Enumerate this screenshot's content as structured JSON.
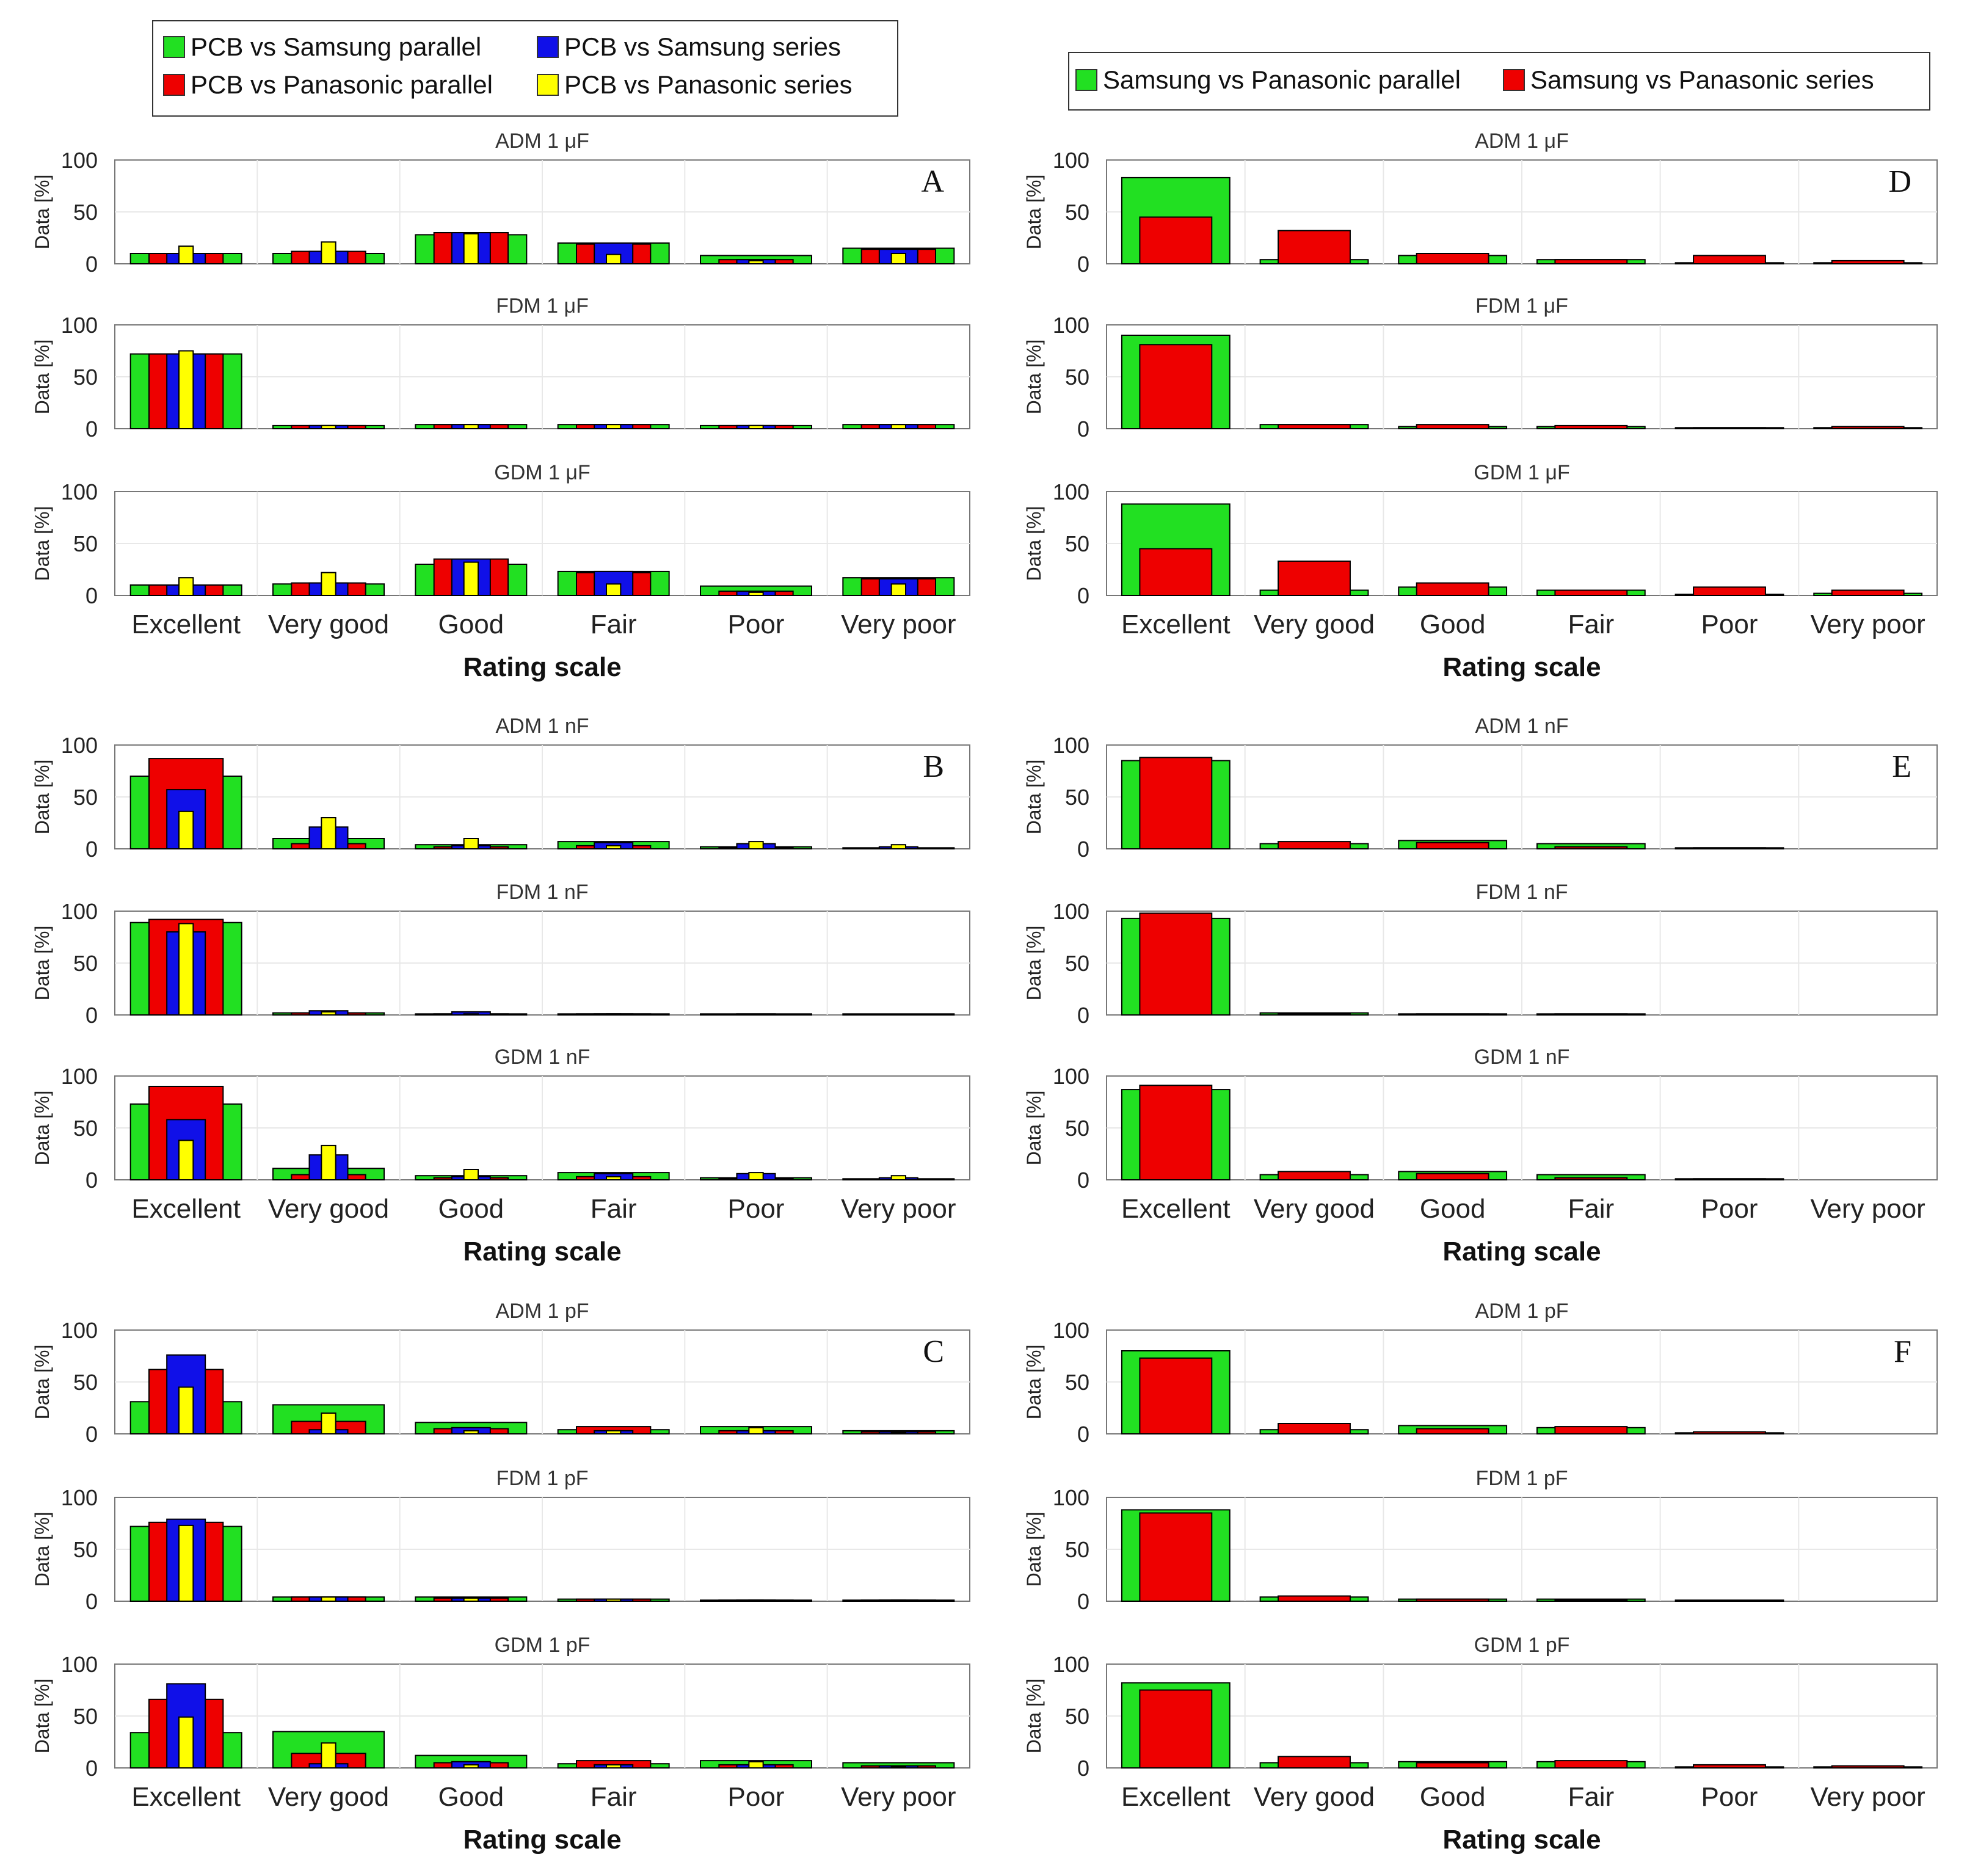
{
  "colors": {
    "psp": "#22e022",
    "pss": "#1010e8",
    "ppp": "#ee0000",
    "pps": "#ffff00",
    "sp_par": "#22e022",
    "sp_ser": "#ee0000"
  },
  "legend_left": [
    {
      "key": "psp",
      "label": "PCB vs Samsung parallel"
    },
    {
      "key": "pss",
      "label": "PCB vs Samsung series"
    },
    {
      "key": "ppp",
      "label": "PCB vs Panasonic parallel"
    },
    {
      "key": "pps",
      "label": "PCB vs Panasonic series"
    }
  ],
  "legend_right": [
    {
      "key": "sp_par",
      "label": "Samsung vs Panasonic parallel"
    },
    {
      "key": "sp_ser",
      "label": "Samsung vs Panasonic series"
    }
  ],
  "chart_data": {
    "type": "bar",
    "categories": [
      "Excellent",
      "Very good",
      "Good",
      "Fair",
      "Poor",
      "Very poor"
    ],
    "xlabel": "Rating scale",
    "ylabel": "Data [%]",
    "yticks": [
      "0",
      "50",
      "100"
    ],
    "ylim": [
      0,
      100
    ],
    "groups": [
      {
        "letter": "A",
        "side": "left",
        "panels": [
          {
            "title": "ADM 1 μF",
            "series": {
              "psp": [
                10,
                10,
                28,
                20,
                8,
                15
              ],
              "ppp": [
                10,
                12,
                30,
                19,
                4,
                14
              ],
              "pss": [
                10,
                12,
                30,
                20,
                4,
                14
              ],
              "pps": [
                17,
                21,
                29,
                9,
                3,
                10
              ]
            }
          },
          {
            "title": "FDM 1 μF",
            "series": {
              "psp": [
                72,
                3,
                4,
                4,
                3,
                4
              ],
              "ppp": [
                72,
                3,
                4,
                4,
                3,
                4
              ],
              "pss": [
                72,
                3,
                4,
                4,
                3,
                4
              ],
              "pps": [
                75,
                3,
                4,
                4,
                3,
                4
              ]
            }
          },
          {
            "title": "GDM 1 μF",
            "series": {
              "psp": [
                10,
                11,
                30,
                23,
                9,
                17
              ],
              "ppp": [
                10,
                12,
                35,
                22,
                4,
                16
              ],
              "pss": [
                10,
                12,
                35,
                23,
                4,
                16
              ],
              "pps": [
                17,
                22,
                32,
                11,
                3,
                11
              ]
            }
          }
        ]
      },
      {
        "letter": "B",
        "side": "left",
        "panels": [
          {
            "title": "ADM 1 nF",
            "series": {
              "psp": [
                70,
                10,
                4,
                7,
                2,
                1
              ],
              "ppp": [
                87,
                5,
                2,
                3,
                1,
                0
              ],
              "pss": [
                57,
                21,
                3,
                6,
                5,
                2
              ],
              "pps": [
                36,
                30,
                10,
                3,
                7,
                4
              ]
            }
          },
          {
            "title": "FDM 1 nF",
            "series": {
              "psp": [
                89,
                2,
                1,
                1,
                1,
                1
              ],
              "ppp": [
                92,
                2,
                1,
                1,
                0,
                0
              ],
              "pss": [
                80,
                4,
                3,
                1,
                1,
                0
              ],
              "pps": [
                88,
                3,
                1,
                1,
                0,
                0
              ]
            }
          },
          {
            "title": "GDM 1 nF",
            "series": {
              "psp": [
                73,
                11,
                4,
                7,
                2,
                1
              ],
              "ppp": [
                90,
                5,
                2,
                3,
                1,
                0
              ],
              "pss": [
                58,
                24,
                3,
                6,
                6,
                2
              ],
              "pps": [
                38,
                33,
                10,
                3,
                7,
                4
              ]
            }
          }
        ]
      },
      {
        "letter": "C",
        "side": "left",
        "panels": [
          {
            "title": "ADM 1 pF",
            "series": {
              "psp": [
                31,
                28,
                11,
                4,
                7,
                3
              ],
              "ppp": [
                62,
                12,
                5,
                7,
                3,
                2
              ],
              "pss": [
                76,
                4,
                6,
                3,
                3,
                2
              ],
              "pps": [
                45,
                20,
                3,
                3,
                6,
                1
              ]
            }
          },
          {
            "title": "FDM 1 pF",
            "series": {
              "psp": [
                72,
                4,
                4,
                2,
                1,
                1
              ],
              "ppp": [
                76,
                4,
                3,
                2,
                1,
                1
              ],
              "pss": [
                79,
                4,
                3,
                2,
                1,
                1
              ],
              "pps": [
                73,
                4,
                3,
                2,
                1,
                1
              ]
            }
          },
          {
            "title": "GDM 1 pF",
            "series": {
              "psp": [
                34,
                35,
                12,
                4,
                7,
                5
              ],
              "ppp": [
                66,
                14,
                5,
                7,
                3,
                2
              ],
              "pss": [
                81,
                4,
                6,
                3,
                3,
                2
              ],
              "pps": [
                49,
                24,
                3,
                3,
                6,
                1
              ]
            }
          }
        ]
      },
      {
        "letter": "D",
        "side": "right",
        "panels": [
          {
            "title": "ADM 1 μF",
            "series": {
              "sp_par": [
                83,
                4,
                8,
                4,
                1,
                1
              ],
              "sp_ser": [
                45,
                32,
                10,
                4,
                8,
                3
              ]
            }
          },
          {
            "title": "FDM 1 μF",
            "series": {
              "sp_par": [
                90,
                4,
                2,
                2,
                1,
                1
              ],
              "sp_ser": [
                81,
                4,
                4,
                3,
                1,
                2
              ]
            }
          },
          {
            "title": "GDM 1 μF",
            "series": {
              "sp_par": [
                88,
                5,
                8,
                5,
                1,
                2
              ],
              "sp_ser": [
                45,
                33,
                12,
                5,
                8,
                5
              ]
            }
          }
        ]
      },
      {
        "letter": "E",
        "side": "right",
        "panels": [
          {
            "title": "ADM 1 nF",
            "series": {
              "sp_par": [
                85,
                5,
                8,
                5,
                1,
                0
              ],
              "sp_ser": [
                88,
                7,
                6,
                2,
                1,
                0
              ]
            }
          },
          {
            "title": "FDM 1 nF",
            "series": {
              "sp_par": [
                93,
                2,
                1,
                1,
                0,
                0
              ],
              "sp_ser": [
                98,
                1,
                1,
                1,
                0,
                0
              ]
            }
          },
          {
            "title": "GDM 1 nF",
            "series": {
              "sp_par": [
                87,
                5,
                8,
                5,
                1,
                0
              ],
              "sp_ser": [
                91,
                8,
                6,
                2,
                1,
                0
              ]
            }
          }
        ]
      },
      {
        "letter": "F",
        "side": "right",
        "panels": [
          {
            "title": "ADM 1 pF",
            "series": {
              "sp_par": [
                80,
                4,
                8,
                6,
                1,
                0
              ],
              "sp_ser": [
                73,
                10,
                5,
                7,
                2,
                0
              ]
            }
          },
          {
            "title": "FDM 1 pF",
            "series": {
              "sp_par": [
                88,
                4,
                2,
                2,
                1,
                0
              ],
              "sp_ser": [
                85,
                5,
                2,
                1,
                0,
                0
              ]
            }
          },
          {
            "title": "GDM 1 pF",
            "series": {
              "sp_par": [
                82,
                5,
                6,
                6,
                1,
                1
              ],
              "sp_ser": [
                75,
                11,
                5,
                7,
                3,
                2
              ]
            }
          }
        ]
      }
    ]
  }
}
